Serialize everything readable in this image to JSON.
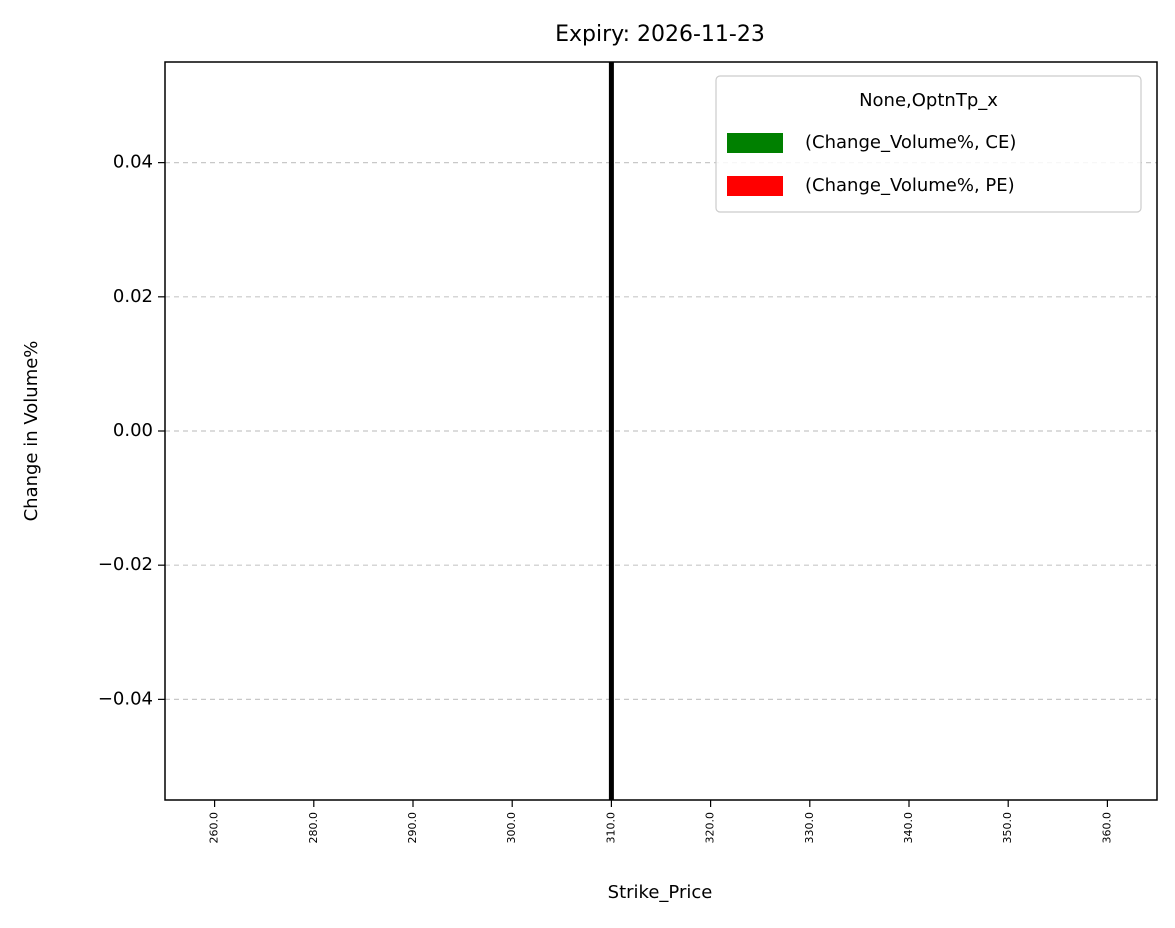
{
  "chart_data": {
    "type": "bar",
    "title": "Expiry: 2026-11-23",
    "x_label": "Strike_Price",
    "y_label": "Change in Volume%",
    "categories": [
      "260.0",
      "280.0",
      "290.0",
      "300.0",
      "310.0",
      "320.0",
      "330.0",
      "340.0",
      "350.0",
      "360.0"
    ],
    "series": [
      {
        "name": "(Change_Volume%, CE)",
        "color": "#008000",
        "values": [
          0,
          0,
          0,
          0,
          0,
          0,
          0,
          0,
          0,
          0
        ]
      },
      {
        "name": "(Change_Volume%, PE)",
        "color": "#ff0000",
        "values": [
          0,
          0,
          0,
          0,
          0,
          0,
          0,
          0,
          0,
          0
        ]
      }
    ],
    "legend_title": "None,OptnTp_x",
    "legend": "upper right",
    "vline_category": "310.0",
    "vline_color": "#000000",
    "ylim": [
      -0.055,
      0.055
    ],
    "yticks": [
      {
        "value": -0.04,
        "label": "−0.04"
      },
      {
        "value": -0.02,
        "label": "−0.02"
      },
      {
        "value": 0,
        "label": "0.00"
      },
      0.02,
      0.04
    ],
    "grid": true
  }
}
